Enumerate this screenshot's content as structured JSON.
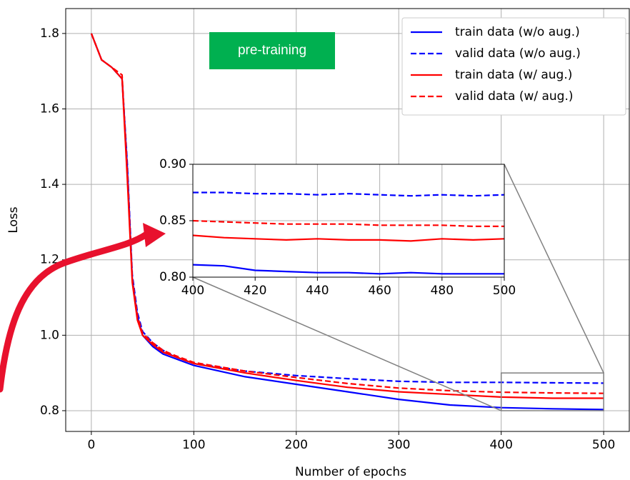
{
  "chart_data": [
    {
      "type": "line",
      "xlabel": "Number of epochs",
      "ylabel": "Loss",
      "grid": true,
      "legend": "upper right",
      "annotation": "pre-training",
      "xlim": [
        -25,
        525
      ],
      "ylim": [
        0.745,
        1.866
      ],
      "xticks": [
        0,
        100,
        200,
        300,
        400,
        500
      ],
      "yticks": [
        0.8,
        {
          "value": 1,
          "label": "1.0"
        },
        1.2,
        1.4,
        1.6,
        1.8
      ],
      "x": [
        0,
        10,
        20,
        30,
        35,
        40,
        45,
        50,
        60,
        70,
        80,
        100,
        150,
        200,
        250,
        300,
        350,
        400,
        450,
        500
      ],
      "series": [
        {
          "name": "train data (w/o aug.)",
          "color": "#0000ff",
          "dashed": false,
          "values": [
            1.8,
            1.73,
            1.71,
            1.68,
            1.45,
            1.15,
            1.05,
            1.0,
            0.97,
            0.95,
            0.94,
            0.92,
            0.89,
            0.87,
            0.85,
            0.83,
            0.815,
            0.808,
            0.805,
            0.803
          ]
        },
        {
          "name": "valid data (w/o aug.)",
          "color": "#0000ff",
          "dashed": true,
          "values": [
            1.8,
            1.73,
            1.71,
            1.68,
            1.46,
            1.16,
            1.06,
            1.01,
            0.98,
            0.96,
            0.945,
            0.925,
            0.905,
            0.893,
            0.885,
            0.878,
            0.875,
            0.875,
            0.874,
            0.873
          ]
        },
        {
          "name": "train data (w/ aug.)",
          "color": "#ff0000",
          "dashed": false,
          "values": [
            1.8,
            1.73,
            1.71,
            1.68,
            1.42,
            1.14,
            1.04,
            1.0,
            0.975,
            0.955,
            0.945,
            0.925,
            0.9,
            0.88,
            0.862,
            0.85,
            0.843,
            0.836,
            0.833,
            0.833
          ]
        },
        {
          "name": "valid data (w/ aug.)",
          "color": "#ff0000",
          "dashed": true,
          "values": [
            1.8,
            1.73,
            1.71,
            1.69,
            1.44,
            1.15,
            1.05,
            1.005,
            0.98,
            0.96,
            0.948,
            0.928,
            0.905,
            0.888,
            0.872,
            0.86,
            0.853,
            0.849,
            0.847,
            0.846
          ]
        }
      ]
    },
    {
      "type": "line",
      "grid": true,
      "xlim": [
        400,
        500
      ],
      "ylim": [
        0.8,
        0.9
      ],
      "xticks": [
        400,
        420,
        440,
        460,
        480,
        500
      ],
      "yticks": [
        {
          "value": 0.8,
          "label": "0.80"
        },
        0.85,
        {
          "value": 0.9,
          "label": "0.90"
        }
      ],
      "x": [
        400,
        410,
        420,
        430,
        440,
        450,
        460,
        470,
        480,
        490,
        500
      ],
      "series": [
        {
          "color": "#0000ff",
          "dashed": false,
          "values": [
            0.811,
            0.81,
            0.806,
            0.805,
            0.804,
            0.804,
            0.803,
            0.804,
            0.803,
            0.803,
            0.803
          ]
        },
        {
          "color": "#0000ff",
          "dashed": true,
          "values": [
            0.875,
            0.875,
            0.874,
            0.874,
            0.873,
            0.874,
            0.873,
            0.872,
            0.873,
            0.872,
            0.873
          ]
        },
        {
          "color": "#ff0000",
          "dashed": false,
          "values": [
            0.837,
            0.835,
            0.834,
            0.833,
            0.834,
            0.833,
            0.833,
            0.832,
            0.834,
            0.833,
            0.834
          ]
        },
        {
          "color": "#ff0000",
          "dashed": true,
          "values": [
            0.85,
            0.849,
            0.848,
            0.847,
            0.847,
            0.847,
            0.846,
            0.846,
            0.846,
            0.845,
            0.845
          ]
        }
      ]
    }
  ]
}
